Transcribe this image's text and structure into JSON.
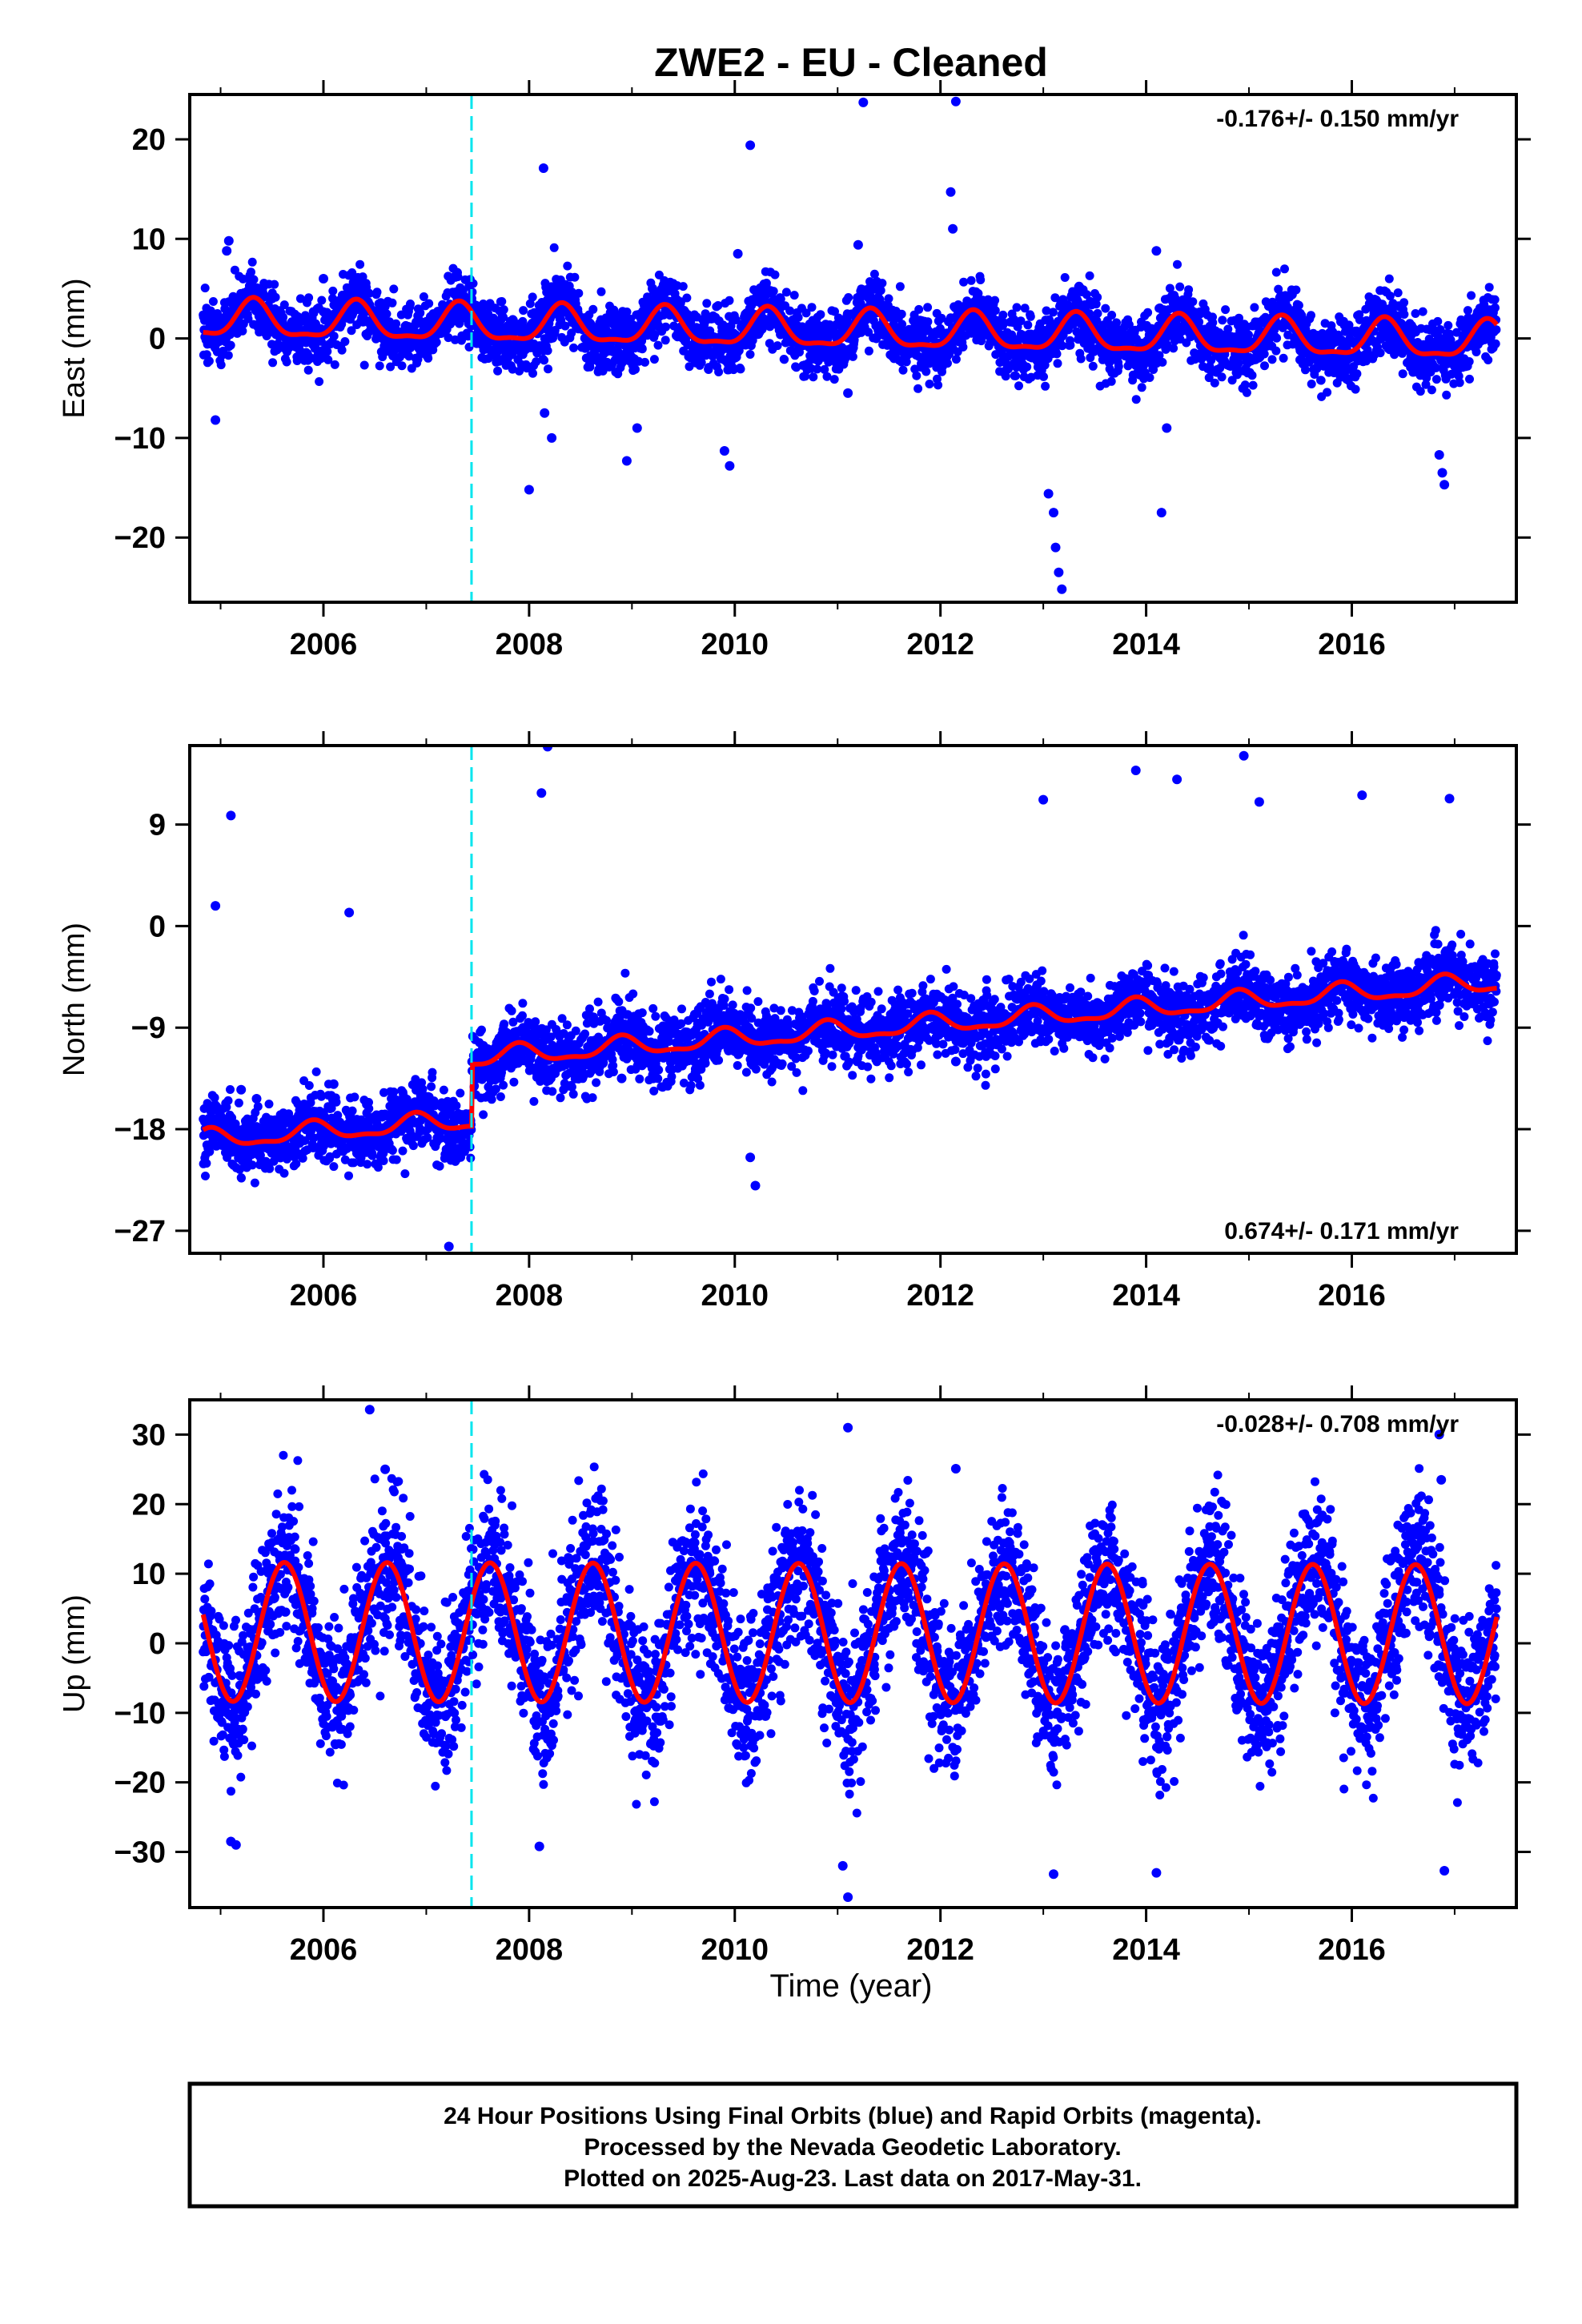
{
  "title": "ZWE2  - EU - Cleaned",
  "colors": {
    "final_orbits": "#0000ff",
    "model_fit": "#ff0000",
    "event_line": "#00e5ee",
    "frame": "#000000"
  },
  "chart_data": [
    {
      "type": "scatter",
      "component": "East",
      "ylabel": "East (mm)",
      "xlabel": "",
      "rate_text": "-0.176+/- 0.150 mm/yr",
      "rate_position": "top-right",
      "xlim": [
        2004.7,
        2017.6
      ],
      "ylim": [
        -26.5,
        24.5
      ],
      "x_ticks": [
        2006,
        2008,
        2010,
        2012,
        2014,
        2016
      ],
      "x_tick_labels": [
        "2006",
        "2008",
        "2010",
        "2012",
        "2014",
        "2016"
      ],
      "y_ticks": [
        -20,
        -10,
        0,
        10,
        20
      ],
      "y_tick_labels": [
        "−20",
        "−10",
        "0",
        "10",
        "20"
      ],
      "event_line_x": 2007.44,
      "model": {
        "offset": 0.9,
        "rate": -0.176,
        "annual_amplitude": 1.8,
        "annual_phase_peak": 0.32,
        "semiannual_amplitude": 0.6,
        "step_at_event": 0
      },
      "point_spread": 1.6,
      "series": [
        {
          "name": "Final Orbits (blue)",
          "x": [
            2004.95,
            2005.08,
            2005.06,
            2006.0,
            2007.3,
            2008.14,
            2008.0,
            2008.15,
            2008.22,
            2008.4,
            2008.95,
            2009.05,
            2009.2,
            2009.9,
            2009.95,
            2010.03,
            2010.15,
            2011.1,
            2011.2,
            2011.25,
            2012.1,
            2012.12,
            2012.15,
            2013.05,
            2013.1,
            2013.12,
            2013.15,
            2013.18,
            2014.1,
            2014.15,
            2014.2,
            2016.85,
            2016.88,
            2016.9
          ],
          "y": [
            -8.2,
            9.8,
            8.8,
            6.0,
            6.6,
            17.1,
            -15.2,
            -7.5,
            -10.0,
            3.0,
            -12.3,
            -9.0,
            5.0,
            -11.3,
            -12.8,
            8.5,
            19.4,
            -5.5,
            9.4,
            23.7,
            14.7,
            11.0,
            23.8,
            -15.6,
            -17.5,
            -21.0,
            -23.5,
            -25.2,
            8.8,
            -17.5,
            -9.0,
            -11.7,
            -13.5,
            -14.7
          ]
        }
      ]
    },
    {
      "type": "scatter",
      "component": "North",
      "ylabel": "North (mm)",
      "xlabel": "",
      "rate_text": "0.674+/- 0.171 mm/yr",
      "rate_position": "bottom-right",
      "xlim": [
        2004.7,
        2017.6
      ],
      "ylim": [
        -29,
        16
      ],
      "x_ticks": [
        2006,
        2008,
        2010,
        2012,
        2014,
        2016
      ],
      "x_tick_labels": [
        "2006",
        "2008",
        "2010",
        "2012",
        "2014",
        "2016"
      ],
      "y_ticks": [
        -27,
        -18,
        -9,
        0,
        9
      ],
      "y_tick_labels": [
        "−27",
        "−18",
        "−9",
        "0",
        "9"
      ],
      "event_line_x": 2007.44,
      "model": {
        "offset": -10.0,
        "rate": 0.674,
        "annual_amplitude": 0.8,
        "annual_phase_peak": 0.9,
        "semiannual_amplitude": 0.3,
        "step_at_event": 5.5
      },
      "point_spread": 1.5,
      "series": [
        {
          "name": "Final Orbits (blue)",
          "x": [
            2005.1,
            2004.95,
            2005.2,
            2005.35,
            2006.1,
            2006.25,
            2007.22,
            2007.15,
            2008.12,
            2008.18,
            2008.9,
            2009.1,
            2010.15,
            2010.2,
            2010.1,
            2012.15,
            2012.2,
            2013.0,
            2013.9,
            2014.3,
            2014.95,
            2015.1,
            2016.1,
            2016.3,
            2016.95,
            2016.85,
            2017.4
          ],
          "y": [
            9.8,
            1.8,
            -14.5,
            -15.3,
            -14.0,
            1.2,
            -28.4,
            -16.0,
            11.8,
            15.9,
            -13.5,
            -12.0,
            -20.5,
            -23.0,
            -10.0,
            -12.0,
            -10.0,
            11.2,
            13.8,
            13.0,
            15.1,
            11.0,
            11.6,
            -7.5,
            11.3,
            -7.0,
            -4.5
          ]
        }
      ]
    },
    {
      "type": "scatter",
      "component": "Up",
      "ylabel": "Up (mm)",
      "xlabel": "Time (year)",
      "rate_text": "-0.028+/- 0.708 mm/yr",
      "rate_position": "top-right",
      "xlim": [
        2004.7,
        2017.6
      ],
      "ylim": [
        -38,
        35
      ],
      "x_ticks": [
        2006,
        2008,
        2010,
        2012,
        2014,
        2016
      ],
      "x_tick_labels": [
        "2006",
        "2008",
        "2010",
        "2012",
        "2014",
        "2016"
      ],
      "y_ticks": [
        -30,
        -20,
        -10,
        0,
        10,
        20,
        30
      ],
      "y_tick_labels": [
        "−30",
        "−20",
        "−10",
        "0",
        "10",
        "20",
        "30"
      ],
      "event_line_x": 2007.44,
      "model": {
        "offset": 1.5,
        "rate": -0.028,
        "annual_amplitude": 10.0,
        "annual_phase_peak": 0.62,
        "semiannual_amplitude": 0.0,
        "step_at_event": 0
      },
      "point_spread": 5.5,
      "series": [
        {
          "name": "Final Orbits (blue)",
          "x": [
            2006.45,
            2005.1,
            2005.15,
            2006.6,
            2008.1,
            2011.1,
            2011.05,
            2011.1,
            2012.15,
            2013.1,
            2014.1,
            2016.85,
            2016.9,
            2016.87
          ],
          "y": [
            33.6,
            -28.5,
            -29.0,
            25.0,
            -29.2,
            31.0,
            -32.0,
            -36.5,
            25.1,
            -33.2,
            -33.0,
            30.0,
            -32.7,
            23.5
          ]
        }
      ]
    }
  ],
  "footer": {
    "line1": "24 Hour Positions Using Final Orbits (blue) and Rapid Orbits (magenta).",
    "line2": "Processed by the Nevada Geodetic Laboratory.",
    "line3": "Plotted on 2025-Aug-23. Last data on 2017-May-31."
  }
}
